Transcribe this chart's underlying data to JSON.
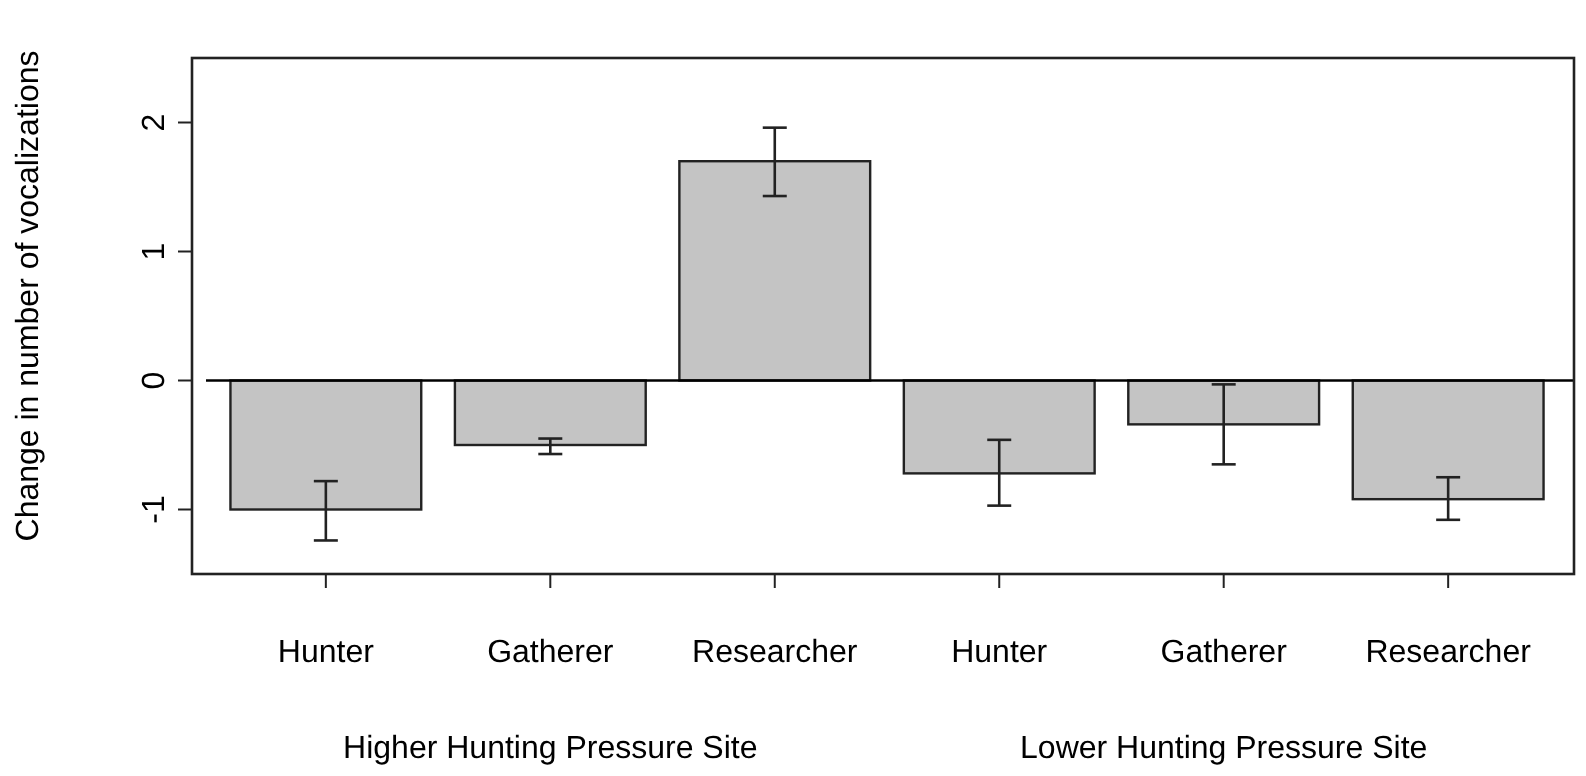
{
  "chart_data": {
    "type": "bar",
    "ylabel": "Change in number of vocalizations",
    "categories": [
      "Hunter",
      "Gatherer",
      "Researcher",
      "Hunter",
      "Gatherer",
      "Researcher"
    ],
    "values": [
      -1.0,
      -0.5,
      1.7,
      -0.72,
      -0.34,
      -0.92
    ],
    "errors": [
      [
        -1.24,
        -0.78
      ],
      [
        -0.57,
        -0.45
      ],
      [
        1.43,
        1.96
      ],
      [
        -0.97,
        -0.46
      ],
      [
        -0.65,
        -0.03
      ],
      [
        -1.08,
        -0.75
      ]
    ],
    "color": "#c4c4c4",
    "ylim": [
      -1.5,
      2.5
    ],
    "yticks": [
      -1,
      0,
      1,
      2
    ],
    "ref_lines": [
      {
        "axis": "y",
        "value": 0
      }
    ],
    "annotations": [
      "Higher Hunting Pressure Site",
      "Lower Hunting Pressure Site"
    ]
  }
}
